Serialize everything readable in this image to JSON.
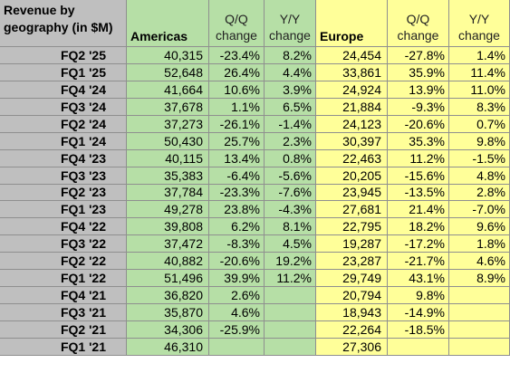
{
  "header": {
    "corner_line1": "Revenue by",
    "corner_line2": "geography (in $M)",
    "americas": "Americas",
    "europe": "Europe",
    "qq_line1": "Q/Q",
    "yy_line1": "Y/Y",
    "change": "change"
  },
  "rows": [
    {
      "quarter": "FQ2 '25",
      "am": "40,315",
      "am_qq": "-23.4%",
      "am_yy": "8.2%",
      "eu": "24,454",
      "eu_qq": "-27.8%",
      "eu_yy": "1.4%"
    },
    {
      "quarter": "FQ1 '25",
      "am": "52,648",
      "am_qq": "26.4%",
      "am_yy": "4.4%",
      "eu": "33,861",
      "eu_qq": "35.9%",
      "eu_yy": "11.4%"
    },
    {
      "quarter": "FQ4 '24",
      "am": "41,664",
      "am_qq": "10.6%",
      "am_yy": "3.9%",
      "eu": "24,924",
      "eu_qq": "13.9%",
      "eu_yy": "11.0%"
    },
    {
      "quarter": "FQ3 '24",
      "am": "37,678",
      "am_qq": "1.1%",
      "am_yy": "6.5%",
      "eu": "21,884",
      "eu_qq": "-9.3%",
      "eu_yy": "8.3%"
    },
    {
      "quarter": "FQ2 '24",
      "am": "37,273",
      "am_qq": "-26.1%",
      "am_yy": "-1.4%",
      "eu": "24,123",
      "eu_qq": "-20.6%",
      "eu_yy": "0.7%"
    },
    {
      "quarter": "FQ1 '24",
      "am": "50,430",
      "am_qq": "25.7%",
      "am_yy": "2.3%",
      "eu": "30,397",
      "eu_qq": "35.3%",
      "eu_yy": "9.8%"
    },
    {
      "quarter": "FQ4 '23",
      "am": "40,115",
      "am_qq": "13.4%",
      "am_yy": "0.8%",
      "eu": "22,463",
      "eu_qq": "11.2%",
      "eu_yy": "-1.5%"
    },
    {
      "quarter": "FQ3 '23",
      "am": "35,383",
      "am_qq": "-6.4%",
      "am_yy": "-5.6%",
      "eu": "20,205",
      "eu_qq": "-15.6%",
      "eu_yy": "4.8%"
    },
    {
      "quarter": "FQ2 '23",
      "am": "37,784",
      "am_qq": "-23.3%",
      "am_yy": "-7.6%",
      "eu": "23,945",
      "eu_qq": "-13.5%",
      "eu_yy": "2.8%"
    },
    {
      "quarter": "FQ1 '23",
      "am": "49,278",
      "am_qq": "23.8%",
      "am_yy": "-4.3%",
      "eu": "27,681",
      "eu_qq": "21.4%",
      "eu_yy": "-7.0%"
    },
    {
      "quarter": "FQ4 '22",
      "am": "39,808",
      "am_qq": "6.2%",
      "am_yy": "8.1%",
      "eu": "22,795",
      "eu_qq": "18.2%",
      "eu_yy": "9.6%"
    },
    {
      "quarter": "FQ3 '22",
      "am": "37,472",
      "am_qq": "-8.3%",
      "am_yy": "4.5%",
      "eu": "19,287",
      "eu_qq": "-17.2%",
      "eu_yy": "1.8%"
    },
    {
      "quarter": "FQ2 '22",
      "am": "40,882",
      "am_qq": "-20.6%",
      "am_yy": "19.2%",
      "eu": "23,287",
      "eu_qq": "-21.7%",
      "eu_yy": "4.6%"
    },
    {
      "quarter": "FQ1 '22",
      "am": "51,496",
      "am_qq": "39.9%",
      "am_yy": "11.2%",
      "eu": "29,749",
      "eu_qq": "43.1%",
      "eu_yy": "8.9%"
    },
    {
      "quarter": "FQ4 '21",
      "am": "36,820",
      "am_qq": "2.6%",
      "am_yy": "",
      "eu": "20,794",
      "eu_qq": "9.8%",
      "eu_yy": ""
    },
    {
      "quarter": "FQ3 '21",
      "am": "35,870",
      "am_qq": "4.6%",
      "am_yy": "",
      "eu": "18,943",
      "eu_qq": "-14.9%",
      "eu_yy": ""
    },
    {
      "quarter": "FQ2 '21",
      "am": "34,306",
      "am_qq": "-25.9%",
      "am_yy": "",
      "eu": "22,264",
      "eu_qq": "-18.5%",
      "eu_yy": ""
    },
    {
      "quarter": "FQ1 '21",
      "am": "46,310",
      "am_qq": "",
      "am_yy": "",
      "eu": "27,306",
      "eu_qq": "",
      "eu_yy": ""
    }
  ],
  "colors": {
    "label_column": "#bfbfbf",
    "americas_fill": "#b6dfa6",
    "europe_fill": "#ffff99",
    "gridline": "#8f8f8f"
  }
}
